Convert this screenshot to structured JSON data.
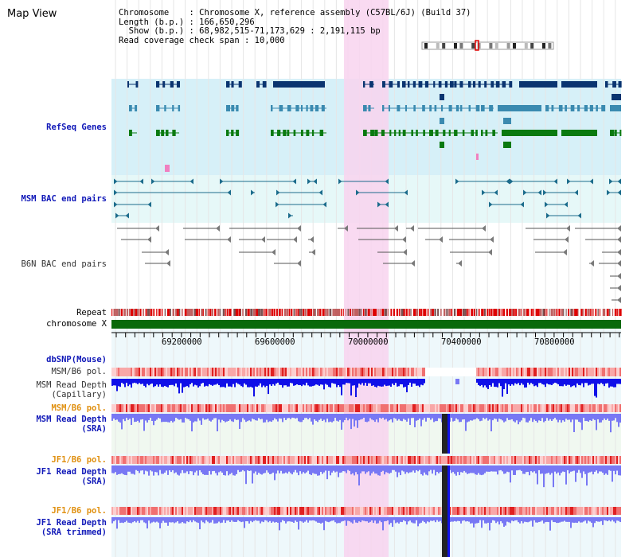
{
  "page_title": "Map View",
  "header": {
    "chromosome_line": "Chromosome    : Chromosome X, reference assembly (C57BL/6J) (Build 37)",
    "length_line": "Length (b.p.) : 166,650,296",
    "show_line": "  Show (b.p.) : 68,982,515-71,173,629 : 2,191,115 bp",
    "coverage_line": "Read coverage check span : 10,000"
  },
  "colors": {
    "refseq_bg": "#d6f0f8",
    "bac_bg": "#e6f8f8",
    "highlight": "#f8d4ee",
    "gene_dark": "#0a3470",
    "gene_mid": "#3a8ab0",
    "gene_green": "#0a7a10",
    "bac_teal": "#1c6c8c",
    "b6n_gray": "#7a7a7a",
    "label_blue": "#1018b8",
    "label_orange": "#e09010",
    "chromosome_green": "#0a6a0a",
    "depth_blue": "#1010e8",
    "sra_blue": "#7878f4"
  },
  "tracks": {
    "refseq": "RefSeq Genes",
    "msm_bac": "MSM BAC end pairs",
    "b6n_bac": "B6N BAC end pairs",
    "repeat": "Repeat",
    "chromosome": "chromosome X",
    "dbsnp": "dbSNP(Mouse)",
    "msm_b6_pol_1": "MSM/B6 pol.",
    "msm_depth_cap_1": "MSM Read Depth",
    "msm_depth_cap_2": "(Capillary)",
    "msm_b6_pol_2": "MSM/B6 pol.",
    "msm_depth_sra_1": "MSM Read Depth",
    "msm_depth_sra_2": "(SRA)",
    "jf1_b6_pol_1": "JF1/B6 pol.",
    "jf1_depth_sra_1": "JF1 Read Depth",
    "jf1_depth_sra_2": "(SRA)",
    "jf1_b6_pol_2": "JF1/B6 pol.",
    "jf1_depth_trim_1": "JF1 Read Depth",
    "jf1_depth_trim_2": "(SRA trimmed)"
  },
  "axis": {
    "ticks": [
      "69200000",
      "69600000",
      "70000000",
      "70400000",
      "70800000"
    ]
  }
}
